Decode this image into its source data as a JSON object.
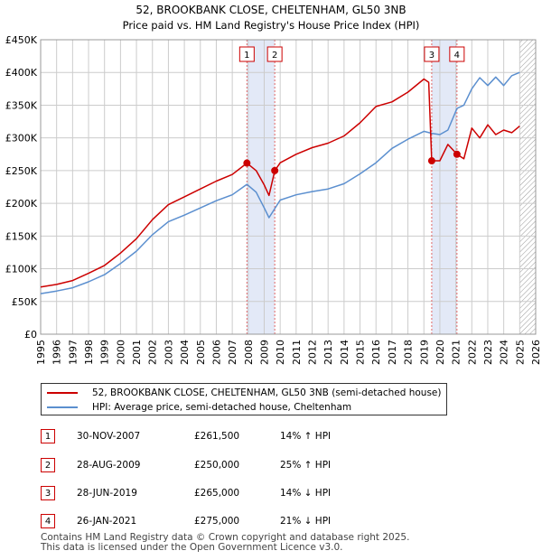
{
  "chart_data": {
    "type": "line",
    "title": "52, BROOKBANK CLOSE, CHELTENHAM, GL50 3NB",
    "subtitle": "Price paid vs. HM Land Registry's House Price Index (HPI)",
    "xlabel": "",
    "ylabel": "",
    "xlim": [
      1995,
      2026
    ],
    "ylim": [
      0,
      450000
    ],
    "yticks": [
      0,
      50000,
      100000,
      150000,
      200000,
      250000,
      300000,
      350000,
      400000,
      450000
    ],
    "ytick_labels": [
      "£0",
      "£50K",
      "£100K",
      "£150K",
      "£200K",
      "£250K",
      "£300K",
      "£350K",
      "£400K",
      "£450K"
    ],
    "xticks": [
      1995,
      1996,
      1997,
      1998,
      1999,
      2000,
      2001,
      2002,
      2003,
      2004,
      2005,
      2006,
      2007,
      2008,
      2009,
      2010,
      2011,
      2012,
      2013,
      2014,
      2015,
      2016,
      2017,
      2018,
      2019,
      2020,
      2021,
      2022,
      2023,
      2024,
      2025,
      2026
    ],
    "grid": true,
    "series": [
      {
        "name": "52, BROOKBANK CLOSE, CHELTENHAM, GL50 3NB (semi-detached house)",
        "color": "#cc0000",
        "x": [
          1995.0,
          1996.0,
          1997.0,
          1998.0,
          1999.0,
          2000.0,
          2001.0,
          2002.0,
          2003.0,
          2004.0,
          2005.0,
          2006.0,
          2007.0,
          2007.917,
          2008.5,
          2009.0,
          2009.3,
          2009.66,
          2010.0,
          2011.0,
          2012.0,
          2013.0,
          2014.0,
          2015.0,
          2016.0,
          2017.0,
          2018.0,
          2019.0,
          2019.3,
          2019.49,
          2020.0,
          2020.5,
          2021.07,
          2021.5,
          2022.0,
          2022.5,
          2023.0,
          2023.5,
          2024.0,
          2024.5,
          2025.0
        ],
        "y": [
          72000,
          76000,
          82000,
          93000,
          105000,
          124000,
          146000,
          175000,
          198000,
          210000,
          222000,
          234000,
          244000,
          261500,
          250000,
          228000,
          212000,
          250000,
          262000,
          275000,
          285000,
          292000,
          303000,
          323000,
          348000,
          355000,
          370000,
          390000,
          385000,
          265000,
          265000,
          290000,
          275000,
          268000,
          315000,
          300000,
          320000,
          305000,
          312000,
          308000,
          318000
        ]
      },
      {
        "name": "HPI: Average price, semi-detached house, Cheltenham",
        "color": "#5b8fcf",
        "x": [
          1995.0,
          1996.0,
          1997.0,
          1998.0,
          1999.0,
          2000.0,
          2001.0,
          2002.0,
          2003.0,
          2004.0,
          2005.0,
          2006.0,
          2007.0,
          2007.917,
          2008.5,
          2009.0,
          2009.3,
          2010.0,
          2011.0,
          2012.0,
          2013.0,
          2014.0,
          2015.0,
          2016.0,
          2017.0,
          2018.0,
          2019.0,
          2019.49,
          2020.0,
          2020.5,
          2021.07,
          2021.5,
          2022.0,
          2022.5,
          2023.0,
          2023.5,
          2024.0,
          2024.5,
          2025.0
        ],
        "y": [
          62000,
          66000,
          71000,
          80000,
          91000,
          108000,
          127000,
          152000,
          172000,
          182000,
          193000,
          204000,
          213000,
          229000,
          217000,
          193000,
          178000,
          205000,
          213000,
          218000,
          222000,
          230000,
          245000,
          262000,
          284000,
          298000,
          310000,
          307000,
          305000,
          312000,
          345000,
          350000,
          375000,
          392000,
          380000,
          393000,
          380000,
          395000,
          400000
        ]
      }
    ],
    "sale_markers": [
      {
        "label": "1",
        "x": 2007.917,
        "y": 261500
      },
      {
        "label": "2",
        "x": 2009.66,
        "y": 250000
      },
      {
        "label": "3",
        "x": 2019.49,
        "y": 265000
      },
      {
        "label": "4",
        "x": 2021.07,
        "y": 275000
      }
    ],
    "shaded_periods": [
      [
        2007.917,
        2009.66
      ],
      [
        2019.49,
        2021.07
      ]
    ],
    "hatched_from": 2025.0
  },
  "legend": {
    "property_label": "52, BROOKBANK CLOSE, CHELTENHAM, GL50 3NB (semi-detached house)",
    "hpi_label": "HPI: Average price, semi-detached house, Cheltenham",
    "property_color": "#cc0000",
    "hpi_color": "#5b8fcf"
  },
  "sales": [
    {
      "num": "1",
      "date": "30-NOV-2007",
      "price": "£261,500",
      "hpi": "14% ↑ HPI"
    },
    {
      "num": "2",
      "date": "28-AUG-2009",
      "price": "£250,000",
      "hpi": "25% ↑ HPI"
    },
    {
      "num": "3",
      "date": "28-JUN-2019",
      "price": "£265,000",
      "hpi": "14% ↓ HPI"
    },
    {
      "num": "4",
      "date": "26-JAN-2021",
      "price": "£275,000",
      "hpi": "21% ↓ HPI"
    }
  ],
  "footer": {
    "line1": "Contains HM Land Registry data © Crown copyright and database right 2025.",
    "line2": "This data is licensed under the Open Government Licence v3.0."
  }
}
